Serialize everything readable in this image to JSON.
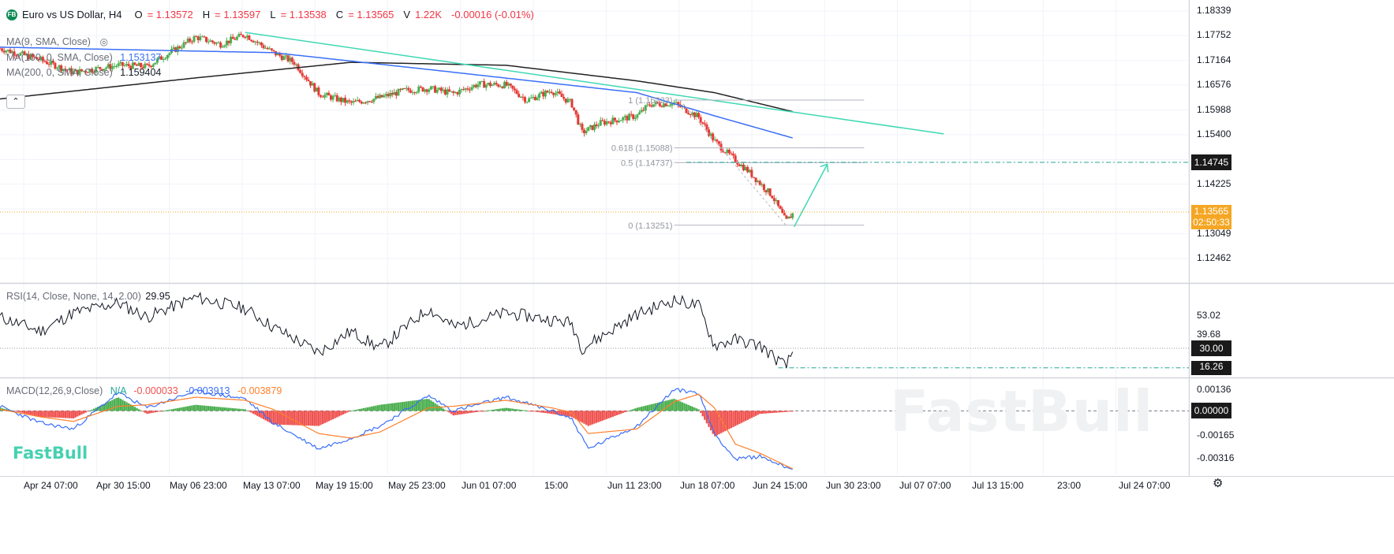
{
  "symbol": {
    "logo_text": "FB",
    "name": "Euro vs US Dollar, H4",
    "open_label": "O",
    "open": "= 1.13572",
    "high_label": "H",
    "high": "= 1.13597",
    "low_label": "L",
    "low": "= 1.13538",
    "close_label": "C",
    "close": "= 1.13565",
    "volume_label": "V",
    "volume": "1.22K",
    "change": "-0.00016 (-0.01%)"
  },
  "indicators": {
    "ma9": "MA(9, SMA, Close)",
    "ma100": "MA(100, 0, SMA, Close)",
    "ma100_value": "1.153137",
    "ma200": "MA(200, 0, SMA, Close)",
    "ma200_value": "1.159404",
    "rsi": "RSI(14, Close, None, 14, 2.00)",
    "rsi_value": "29.95",
    "macd": "MACD(12,26,9,Close)",
    "macd_hist": "N/A",
    "macd_v1": "-0.000033",
    "macd_v2": "-0.003913",
    "macd_v3": "-0.003879"
  },
  "colors": {
    "up": "#26a69a",
    "down": "#ef5350",
    "candle_up": "#4caf50",
    "candle_down": "#e53935",
    "ma100": "#3a6ff7",
    "ma200": "#222222",
    "trend": "#3fd8b3",
    "price_tag": "#f5a623",
    "rsi_line": "#131722",
    "macd_line": "#3a6ff7",
    "signal_line": "#ff7f2a",
    "macd_hist_up": "#4caf50",
    "macd_hist_down": "#ef5350"
  },
  "price_axis": {
    "ticks": [
      "1.18339",
      "1.17752",
      "1.17164",
      "1.16576",
      "1.15988",
      "1.15400",
      "1.14225",
      "1.13049",
      "1.12462"
    ],
    "target_tag": "1.14745",
    "price_tag": "1.13565",
    "countdown": "02:50:33"
  },
  "rsi_axis": {
    "ticks": [
      "53.02",
      "39.68"
    ],
    "level_tag": "30.00",
    "low_tag": "16.26"
  },
  "macd_axis": {
    "ticks": [
      "0.00136",
      "-0.00165",
      "-0.00316"
    ],
    "zero_tag": "0.00000"
  },
  "time_axis": [
    "Apr 24 07:00",
    "Apr 30 15:00",
    "May 06 23:00",
    "May 13 07:00",
    "May 19 15:00",
    "May 25 23:00",
    "Jun 01 07:00",
    "15:00",
    "Jun 11 23:00",
    "Jun 18 07:00",
    "Jun 24 15:00",
    "Jun 30 23:00",
    "Jul 07 07:00",
    "Jul 13 15:00",
    "23:00",
    "Jul 24 07:00"
  ],
  "fib": [
    {
      "label": "1 (1.16223)",
      "price": 1.16223
    },
    {
      "label": "0.618 (1.15088)",
      "price": 1.15088
    },
    {
      "label": "0.5 (1.14737)",
      "price": 1.14737
    },
    {
      "label": "0 (1.13251)",
      "price": 1.13251
    }
  ],
  "watermark": "FastBull",
  "brand_logo": "FastBull",
  "chart_data": {
    "type": "candlestick",
    "title": "Euro vs US Dollar, H4",
    "ylim": [
      1.119,
      1.186
    ],
    "x_start": "Apr 21",
    "x_end": "Jul 27",
    "close_anchors": [
      [
        "Apr 21 00:00",
        1.1745
      ],
      [
        "Apr 24 07:00",
        1.1718
      ],
      [
        "Apr 27 00:00",
        1.1688
      ],
      [
        "Apr 30 15:00",
        1.1705
      ],
      [
        "May 03 00:00",
        1.1702
      ],
      [
        "May 06 23:00",
        1.1772
      ],
      [
        "May 09 00:00",
        1.1755
      ],
      [
        "May 11 00:00",
        1.1778
      ],
      [
        "May 13 07:00",
        1.1735
      ],
      [
        "May 15 00:00",
        1.1712
      ],
      [
        "May 17 00:00",
        1.1638
      ],
      [
        "May 19 15:00",
        1.1615
      ],
      [
        "May 22 00:00",
        1.1628
      ],
      [
        "May 24 00:00",
        1.1645
      ],
      [
        "May 25 23:00",
        1.165
      ],
      [
        "May 28 00:00",
        1.1638
      ],
      [
        "May 30 00:00",
        1.166
      ],
      [
        "Jun 01 07:00",
        1.1658
      ],
      [
        "Jun 03 00:00",
        1.1622
      ],
      [
        "Jun 05 00:00",
        1.1645
      ],
      [
        "Jun 06 15:00",
        1.1615
      ],
      [
        "Jun 07 12:00",
        1.1545
      ],
      [
        "Jun 09 00:00",
        1.1568
      ],
      [
        "Jun 11 23:00",
        1.1585
      ],
      [
        "Jun 13 00:00",
        1.1612
      ],
      [
        "Jun 15 00:00",
        1.1615
      ],
      [
        "Jun 17 00:00",
        1.1582
      ],
      [
        "Jun 18 07:00",
        1.1525
      ],
      [
        "Jun 19 12:00",
        1.1492
      ],
      [
        "Jun 21 00:00",
        1.1455
      ],
      [
        "Jun 23 00:00",
        1.1395
      ],
      [
        "Jun 24 03:00",
        1.1334
      ],
      [
        "Jun 24 19:00",
        1.13565
      ]
    ],
    "ma100_anchors": [
      [
        "Apr 21 00:00",
        1.1748
      ],
      [
        "May 13 07:00",
        1.1735
      ],
      [
        "May 25 23:00",
        1.1695
      ],
      [
        "Jun 11 23:00",
        1.164
      ],
      [
        "Jun 18 07:00",
        1.1585
      ],
      [
        "Jun 24 19:00",
        1.15314
      ]
    ],
    "ma200_anchors": [
      [
        "Apr 21 00:00",
        1.1625
      ],
      [
        "May 06 23:00",
        1.1675
      ],
      [
        "May 19 15:00",
        1.1712
      ],
      [
        "Jun 01 07:00",
        1.1705
      ],
      [
        "Jun 11 23:00",
        1.1668
      ],
      [
        "Jun 18 07:00",
        1.164
      ],
      [
        "Jun 24 19:00",
        1.1594
      ]
    ],
    "trendline": [
      [
        "May 11 00:00",
        1.1783
      ],
      [
        "Jul 07 00:00",
        1.1542
      ]
    ],
    "projection": [
      [
        "Jun 24 19:00",
        1.13251
      ],
      [
        "Jun 27 12:00",
        1.14737
      ]
    ],
    "rsi": {
      "ylim": [
        10,
        75
      ],
      "level": 30,
      "low_marker": 16.26,
      "last": 29.95,
      "anchors": [
        [
          "Apr 21 00:00",
          52
        ],
        [
          "Apr 24 07:00",
          42
        ],
        [
          "Apr 27 00:00",
          55
        ],
        [
          "Apr 30 15:00",
          62
        ],
        [
          "May 03 00:00",
          52
        ],
        [
          "May 06 23:00",
          66
        ],
        [
          "May 11 00:00",
          58
        ],
        [
          "May 13 07:00",
          45
        ],
        [
          "May 17 00:00",
          27
        ],
        [
          "May 19 15:00",
          42
        ],
        [
          "May 22 00:00",
          30
        ],
        [
          "May 25 23:00",
          58
        ],
        [
          "May 28 00:00",
          45
        ],
        [
          "Jun 01 07:00",
          55
        ],
        [
          "Jun 05 00:00",
          50
        ],
        [
          "Jun 06 15:00",
          48
        ],
        [
          "Jun 07 12:00",
          30
        ],
        [
          "Jun 11 23:00",
          54
        ],
        [
          "Jun 15 00:00",
          64
        ],
        [
          "Jun 17 00:00",
          60
        ],
        [
          "Jun 18 07:00",
          32
        ],
        [
          "Jun 20 00:00",
          36
        ],
        [
          "Jun 22 00:00",
          32
        ],
        [
          "Jun 24 03:00",
          17
        ],
        [
          "Jun 24 19:00",
          29.95
        ]
      ]
    },
    "macd": {
      "ylim": [
        -0.0042,
        0.0021
      ],
      "macd_anchors": [
        [
          "Apr 21 00:00",
          0.0003
        ],
        [
          "Apr 24 07:00",
          -0.0008
        ],
        [
          "Apr 27 00:00",
          -0.0012
        ],
        [
          "Apr 30 15:00",
          0.0012
        ],
        [
          "May 03 00:00",
          0.0002
        ],
        [
          "May 06 23:00",
          0.0013
        ],
        [
          "May 11 00:00",
          0.0008
        ],
        [
          "May 13 07:00",
          -0.0008
        ],
        [
          "May 17 00:00",
          -0.0025
        ],
        [
          "May 19 15:00",
          -0.0018
        ],
        [
          "May 22 00:00",
          -0.001
        ],
        [
          "May 25 23:00",
          0.001
        ],
        [
          "May 28 00:00",
          0.0
        ],
        [
          "Jun 01 07:00",
          0.0009
        ],
        [
          "Jun 05 00:00",
          0.0
        ],
        [
          "Jun 06 15:00",
          -0.0005
        ],
        [
          "Jun 08 00:00",
          -0.0025
        ],
        [
          "Jun 11 23:00",
          -0.001
        ],
        [
          "Jun 15 00:00",
          0.0014
        ],
        [
          "Jun 17 00:00",
          0.0012
        ],
        [
          "Jun 18 07:00",
          -0.0015
        ],
        [
          "Jun 20 00:00",
          -0.0032
        ],
        [
          "Jun 22 00:00",
          -0.003
        ],
        [
          "Jun 24 19:00",
          -0.003913
        ]
      ],
      "signal_anchors": [
        [
          "Apr 21 00:00",
          0.0001
        ],
        [
          "Apr 24 07:00",
          -0.0004
        ],
        [
          "Apr 27 00:00",
          -0.0007
        ],
        [
          "Apr 30 15:00",
          0.0003
        ],
        [
          "May 03 00:00",
          0.0004
        ],
        [
          "May 06 23:00",
          0.0009
        ],
        [
          "May 11 00:00",
          0.0007
        ],
        [
          "May 13 07:00",
          0.0001
        ],
        [
          "May 17 00:00",
          -0.0015
        ],
        [
          "May 19 15:00",
          -0.0018
        ],
        [
          "May 22 00:00",
          -0.0014
        ],
        [
          "May 25 23:00",
          0.0002
        ],
        [
          "May 28 00:00",
          0.0003
        ],
        [
          "Jun 01 07:00",
          0.0007
        ],
        [
          "Jun 05 00:00",
          0.0002
        ],
        [
          "Jun 06 15:00",
          -0.0001
        ],
        [
          "Jun 08 00:00",
          -0.0015
        ],
        [
          "Jun 11 23:00",
          -0.0012
        ],
        [
          "Jun 15 00:00",
          0.0006
        ],
        [
          "Jun 17 00:00",
          0.0011
        ],
        [
          "Jun 18 07:00",
          0.0002
        ],
        [
          "Jun 20 00:00",
          -0.0022
        ],
        [
          "Jun 22 00:00",
          -0.0028
        ],
        [
          "Jun 24 19:00",
          -0.003879
        ]
      ]
    }
  }
}
